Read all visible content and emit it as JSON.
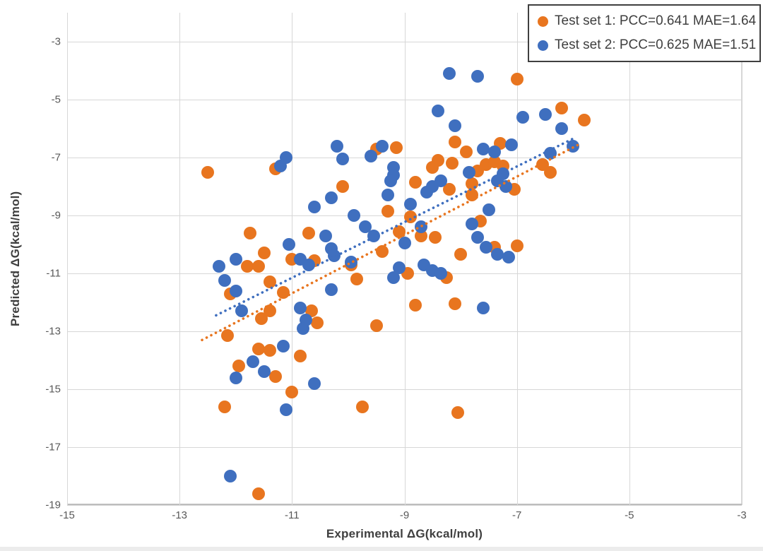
{
  "chart_data": {
    "type": "scatter",
    "title": "",
    "xlabel": "Experimental ΔG(kcal/mol)",
    "ylabel": "Predicted ΔG(kcal/mol)",
    "xlim": [
      -15,
      -3
    ],
    "ylim": [
      -19,
      -2
    ],
    "x_ticks": [
      "-15",
      "-13",
      "-11",
      "-9",
      "-7",
      "-5",
      "-3"
    ],
    "x_tick_values": [
      -15,
      -13,
      -11,
      -9,
      -7,
      -5,
      -3
    ],
    "y_ticks": [
      "-3",
      "-5",
      "-7",
      "-9",
      "-11",
      "-13",
      "-15",
      "-17",
      "-19"
    ],
    "y_tick_values": [
      -3,
      -5,
      -7,
      -9,
      -11,
      -13,
      -15,
      -17,
      -19
    ],
    "grid": true,
    "legend_position": "top-right",
    "series": [
      {
        "name": "Test set 1: PCC=0.641 MAE=1.64",
        "slug": "test-set-1",
        "color": "#e8751f",
        "trendline": {
          "x1": -12.6,
          "y1": -13.3,
          "x2": -5.85,
          "y2": -6.5,
          "style": "dotted"
        },
        "points": [
          [
            -12.5,
            -7.5
          ],
          [
            -11.3,
            -7.4
          ],
          [
            -10.1,
            -8.0
          ],
          [
            -8.8,
            -7.85
          ],
          [
            -8.2,
            -8.1
          ],
          [
            -7.8,
            -8.3
          ],
          [
            -7.05,
            -8.1
          ],
          [
            -10.7,
            -9.6
          ],
          [
            -11.75,
            -9.6
          ],
          [
            -9.4,
            -10.25
          ],
          [
            -9.1,
            -9.55
          ],
          [
            -8.9,
            -9.05
          ],
          [
            -9.3,
            -8.85
          ],
          [
            -8.7,
            -9.7
          ],
          [
            -8.45,
            -9.75
          ],
          [
            -7.65,
            -9.2
          ],
          [
            -8.0,
            -10.35
          ],
          [
            -7.4,
            -10.1
          ],
          [
            -7.0,
            -10.05
          ],
          [
            -11.8,
            -10.75
          ],
          [
            -11.6,
            -10.75
          ],
          [
            -11.5,
            -10.3
          ],
          [
            -11.0,
            -10.5
          ],
          [
            -10.6,
            -10.55
          ],
          [
            -9.95,
            -10.7
          ],
          [
            -12.1,
            -11.7
          ],
          [
            -11.4,
            -11.3
          ],
          [
            -11.15,
            -11.65
          ],
          [
            -9.85,
            -11.2
          ],
          [
            -8.95,
            -11.0
          ],
          [
            -8.25,
            -11.15
          ],
          [
            -11.55,
            -12.55
          ],
          [
            -11.4,
            -12.3
          ],
          [
            -10.65,
            -12.3
          ],
          [
            -10.55,
            -12.7
          ],
          [
            -8.8,
            -12.1
          ],
          [
            -8.1,
            -12.05
          ],
          [
            -12.15,
            -13.15
          ],
          [
            -9.5,
            -12.8
          ],
          [
            -11.6,
            -13.6
          ],
          [
            -11.4,
            -13.65
          ],
          [
            -11.95,
            -14.2
          ],
          [
            -11.3,
            -14.55
          ],
          [
            -10.85,
            -13.85
          ],
          [
            -11.0,
            -15.1
          ],
          [
            -12.2,
            -15.6
          ],
          [
            -9.75,
            -15.6
          ],
          [
            -8.05,
            -15.8
          ],
          [
            -11.6,
            -18.6
          ],
          [
            -6.2,
            -5.3
          ],
          [
            -5.8,
            -5.7
          ],
          [
            -6.55,
            -7.25
          ],
          [
            -6.4,
            -7.5
          ],
          [
            -9.5,
            -6.7
          ],
          [
            -9.15,
            -6.65
          ],
          [
            -8.4,
            -7.1
          ],
          [
            -8.5,
            -7.35
          ],
          [
            -8.1,
            -6.45
          ],
          [
            -7.9,
            -6.8
          ],
          [
            -7.3,
            -6.5
          ],
          [
            -7.7,
            -7.45
          ],
          [
            -7.55,
            -7.25
          ],
          [
            -7.4,
            -7.15
          ],
          [
            -7.25,
            -7.3
          ],
          [
            -7.8,
            -7.9
          ],
          [
            -8.15,
            -7.2
          ],
          [
            -7.0,
            -4.3
          ]
        ]
      },
      {
        "name": "Test set 2: PCC=0.625 MAE=1.51",
        "slug": "test-set-2",
        "color": "#3f6fbf",
        "trendline": {
          "x1": -12.35,
          "y1": -12.45,
          "x2": -5.95,
          "y2": -6.3,
          "style": "dotted"
        },
        "points": [
          [
            -11.2,
            -7.3
          ],
          [
            -11.1,
            -7.0
          ],
          [
            -8.2,
            -4.1
          ],
          [
            -7.7,
            -4.2
          ],
          [
            -8.4,
            -5.4
          ],
          [
            -8.1,
            -5.9
          ],
          [
            -10.2,
            -6.6
          ],
          [
            -10.1,
            -7.05
          ],
          [
            -9.6,
            -6.95
          ],
          [
            -9.4,
            -6.6
          ],
          [
            -9.2,
            -7.35
          ],
          [
            -9.2,
            -7.6
          ],
          [
            -7.6,
            -6.7
          ],
          [
            -7.4,
            -6.8
          ],
          [
            -7.1,
            -6.55
          ],
          [
            -6.9,
            -5.6
          ],
          [
            -6.5,
            -5.5
          ],
          [
            -6.2,
            -6.0
          ],
          [
            -6.0,
            -6.6
          ],
          [
            -6.4,
            -6.85
          ],
          [
            -7.85,
            -7.5
          ],
          [
            -7.25,
            -7.55
          ],
          [
            -7.35,
            -7.8
          ],
          [
            -7.2,
            -8.0
          ],
          [
            -8.6,
            -8.2
          ],
          [
            -8.5,
            -8.0
          ],
          [
            -8.35,
            -7.8
          ],
          [
            -9.25,
            -7.8
          ],
          [
            -10.6,
            -8.7
          ],
          [
            -10.3,
            -8.4
          ],
          [
            -9.3,
            -8.3
          ],
          [
            -8.9,
            -8.6
          ],
          [
            -9.9,
            -9.0
          ],
          [
            -9.7,
            -9.4
          ],
          [
            -9.55,
            -9.7
          ],
          [
            -10.4,
            -9.7
          ],
          [
            -10.3,
            -10.15
          ],
          [
            -10.25,
            -10.4
          ],
          [
            -12.0,
            -10.5
          ],
          [
            -12.3,
            -10.75
          ],
          [
            -11.05,
            -10.0
          ],
          [
            -10.85,
            -10.5
          ],
          [
            -10.7,
            -10.7
          ],
          [
            -9.95,
            -10.6
          ],
          [
            -9.0,
            -9.95
          ],
          [
            -8.7,
            -9.4
          ],
          [
            -7.8,
            -9.3
          ],
          [
            -7.7,
            -9.75
          ],
          [
            -7.55,
            -10.1
          ],
          [
            -7.35,
            -10.35
          ],
          [
            -7.15,
            -10.45
          ],
          [
            -7.5,
            -8.8
          ],
          [
            -8.65,
            -10.7
          ],
          [
            -8.5,
            -10.9
          ],
          [
            -8.35,
            -11.0
          ],
          [
            -9.1,
            -10.8
          ],
          [
            -9.2,
            -11.15
          ],
          [
            -12.2,
            -11.25
          ],
          [
            -12.0,
            -11.6
          ],
          [
            -10.3,
            -11.55
          ],
          [
            -11.9,
            -12.3
          ],
          [
            -10.85,
            -12.2
          ],
          [
            -10.75,
            -12.6
          ],
          [
            -10.8,
            -12.9
          ],
          [
            -7.6,
            -12.2
          ],
          [
            -11.15,
            -13.5
          ],
          [
            -11.7,
            -14.05
          ],
          [
            -11.5,
            -14.4
          ],
          [
            -12.0,
            -14.6
          ],
          [
            -10.6,
            -14.8
          ],
          [
            -11.1,
            -15.7
          ],
          [
            -12.1,
            -18.0
          ]
        ]
      }
    ]
  }
}
